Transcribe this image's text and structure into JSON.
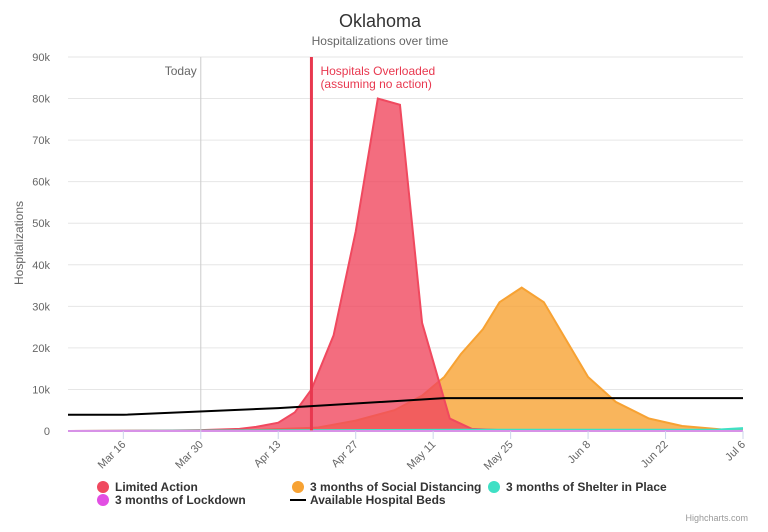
{
  "chart_data": {
    "type": "area",
    "title": "Oklahoma",
    "subtitle": "Hospitalizations over time",
    "ylabel": "Hospitalizations",
    "ylim": [
      0,
      90000
    ],
    "y_ticks": [
      {
        "value": 0,
        "label": "0"
      },
      {
        "value": 10000,
        "label": "10k"
      },
      {
        "value": 20000,
        "label": "20k"
      },
      {
        "value": 30000,
        "label": "30k"
      },
      {
        "value": 40000,
        "label": "40k"
      },
      {
        "value": 50000,
        "label": "50k"
      },
      {
        "value": 60000,
        "label": "60k"
      },
      {
        "value": 70000,
        "label": "70k"
      },
      {
        "value": 80000,
        "label": "80k"
      },
      {
        "value": 90000,
        "label": "90k"
      }
    ],
    "x_ticks": [
      "Mar 16",
      "Mar 30",
      "Apr 13",
      "Apr 27",
      "May 11",
      "May 25",
      "Jun 8",
      "Jun 22",
      "Jul 6"
    ],
    "x_range": [
      "2020-03-06",
      "2020-07-06"
    ],
    "grid": true,
    "legend_position": "bottom",
    "plot_lines": [
      {
        "date": "2020-03-30",
        "label": "Today",
        "color": "#cccccc",
        "width": 1
      },
      {
        "date": "2020-04-19",
        "label_lines": [
          "Hospitals Overloaded",
          "(assuming no action)"
        ],
        "color": "#e8384f",
        "width": 3
      }
    ],
    "series": [
      {
        "name": "Limited Action",
        "kind": "area",
        "color": "#f0495f",
        "points": [
          [
            "2020-03-06",
            0
          ],
          [
            "2020-03-23",
            100
          ],
          [
            "2020-03-30",
            200
          ],
          [
            "2020-04-06",
            500
          ],
          [
            "2020-04-09",
            1000
          ],
          [
            "2020-04-13",
            2000
          ],
          [
            "2020-04-16",
            4500
          ],
          [
            "2020-04-19",
            10000
          ],
          [
            "2020-04-23",
            23000
          ],
          [
            "2020-04-27",
            48000
          ],
          [
            "2020-05-01",
            80000
          ],
          [
            "2020-05-05",
            78500
          ],
          [
            "2020-05-09",
            26000
          ],
          [
            "2020-05-14",
            3000
          ],
          [
            "2020-05-18",
            500
          ],
          [
            "2020-05-25",
            100
          ],
          [
            "2020-06-08",
            0
          ],
          [
            "2020-07-06",
            0
          ]
        ]
      },
      {
        "name": "3 months of Social Distancing",
        "kind": "area",
        "color": "#f7a233",
        "points": [
          [
            "2020-03-06",
            0
          ],
          [
            "2020-04-06",
            100
          ],
          [
            "2020-04-20",
            800
          ],
          [
            "2020-04-27",
            2500
          ],
          [
            "2020-05-04",
            5000
          ],
          [
            "2020-05-09",
            8500
          ],
          [
            "2020-05-13",
            13000
          ],
          [
            "2020-05-16",
            18500
          ],
          [
            "2020-05-20",
            24500
          ],
          [
            "2020-05-23",
            31000
          ],
          [
            "2020-05-27",
            34500
          ],
          [
            "2020-05-31",
            31000
          ],
          [
            "2020-06-04",
            22000
          ],
          [
            "2020-06-08",
            13000
          ],
          [
            "2020-06-13",
            7000
          ],
          [
            "2020-06-19",
            3000
          ],
          [
            "2020-06-25",
            1200
          ],
          [
            "2020-07-02",
            400
          ],
          [
            "2020-07-06",
            200
          ]
        ]
      },
      {
        "name": "3 months of Shelter in Place",
        "kind": "area",
        "color": "#3fe0c5",
        "points": [
          [
            "2020-03-06",
            0
          ],
          [
            "2020-05-18",
            300
          ],
          [
            "2020-06-08",
            300
          ],
          [
            "2020-07-01",
            300
          ],
          [
            "2020-07-06",
            700
          ]
        ]
      },
      {
        "name": "3 months of Lockdown",
        "kind": "area",
        "color": "#e24fe3",
        "points": [
          [
            "2020-03-06",
            0
          ],
          [
            "2020-07-06",
            0
          ]
        ]
      },
      {
        "name": "Available Hospital Beds",
        "kind": "line",
        "color": "#000000",
        "points": [
          [
            "2020-03-06",
            3900
          ],
          [
            "2020-03-16",
            3900
          ],
          [
            "2020-04-13",
            5500
          ],
          [
            "2020-05-13",
            7900
          ],
          [
            "2020-07-06",
            7900
          ]
        ]
      }
    ],
    "legend_entries": [
      {
        "name": "Limited Action",
        "symbol": "circle",
        "color": "#f0495f"
      },
      {
        "name": "3 months of Social Distancing",
        "symbol": "circle",
        "color": "#f7a233"
      },
      {
        "name": "3 months of Shelter in Place",
        "symbol": "circle",
        "color": "#3fe0c5"
      },
      {
        "name": "3 months of Lockdown",
        "symbol": "circle",
        "color": "#e24fe3"
      },
      {
        "name": "Available Hospital Beds",
        "symbol": "line",
        "color": "#000000"
      }
    ],
    "credits": "Highcharts.com"
  }
}
